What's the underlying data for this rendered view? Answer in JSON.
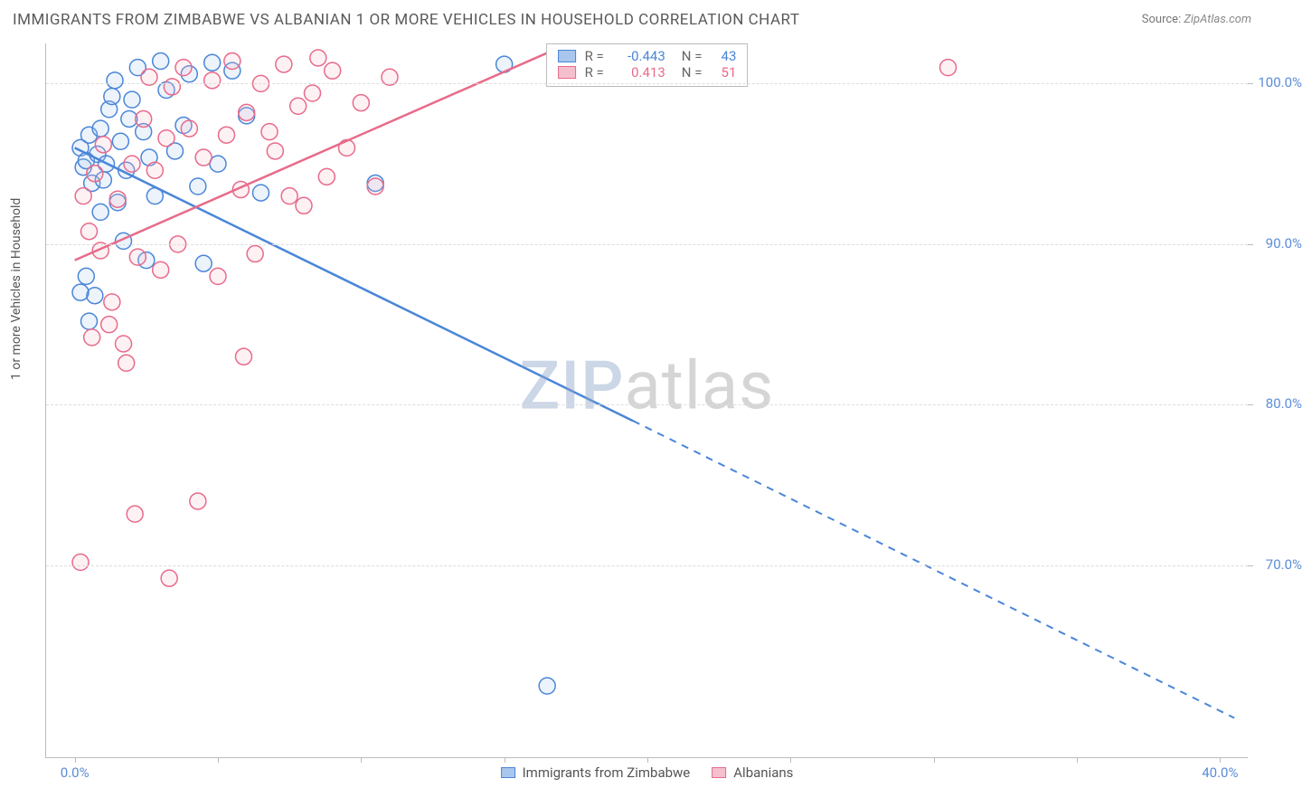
{
  "title": "IMMIGRANTS FROM ZIMBABWE VS ALBANIAN 1 OR MORE VEHICLES IN HOUSEHOLD CORRELATION CHART",
  "source_label": "Source:",
  "source_value": "ZipAtlas.com",
  "ylabel": "1 or more Vehicles in Household",
  "watermark_a": "ZIP",
  "watermark_b": "atlas",
  "chart": {
    "type": "scatter",
    "xlim": [
      -1,
      41
    ],
    "ylim": [
      58,
      102.5
    ],
    "xtick_positions": [
      0,
      5,
      10,
      15,
      20,
      25,
      30,
      35,
      40
    ],
    "xtick_labels": [
      "0.0%",
      "",
      "",
      "",
      "",
      "",
      "",
      "",
      "40.0%"
    ],
    "ytick_positions": [
      70,
      80,
      90,
      100
    ],
    "ytick_labels": [
      "70.0%",
      "80.0%",
      "90.0%",
      "100.0%"
    ],
    "grid_color": "#dddddd",
    "axis_color": "#bbbbbb",
    "background_color": "#ffffff",
    "tick_label_color": "#5b8dd6",
    "marker_radius": 9,
    "marker_stroke_width": 1.5,
    "marker_fill_opacity": 0.22,
    "series": [
      {
        "name": "Immigrants from Zimbabwe",
        "color": "#4a86d8",
        "fill": "#a9c7ed",
        "r_value": "-0.443",
        "n_value": "43",
        "points": [
          [
            0.2,
            96.0
          ],
          [
            0.3,
            94.8
          ],
          [
            0.5,
            96.8
          ],
          [
            0.4,
            95.2
          ],
          [
            0.6,
            93.8
          ],
          [
            0.8,
            95.6
          ],
          [
            0.9,
            97.2
          ],
          [
            1.0,
            94.0
          ],
          [
            1.2,
            98.4
          ],
          [
            1.3,
            99.2
          ],
          [
            1.4,
            100.2
          ],
          [
            1.6,
            96.4
          ],
          [
            1.8,
            94.6
          ],
          [
            1.9,
            97.8
          ],
          [
            2.0,
            99.0
          ],
          [
            2.2,
            101.0
          ],
          [
            2.4,
            97.0
          ],
          [
            2.6,
            95.4
          ],
          [
            2.8,
            93.0
          ],
          [
            3.0,
            101.4
          ],
          [
            3.2,
            99.6
          ],
          [
            3.5,
            95.8
          ],
          [
            3.8,
            97.4
          ],
          [
            4.0,
            100.6
          ],
          [
            4.3,
            93.6
          ],
          [
            4.5,
            88.8
          ],
          [
            0.4,
            88.0
          ],
          [
            0.7,
            86.8
          ],
          [
            1.1,
            95.0
          ],
          [
            1.5,
            92.6
          ],
          [
            1.7,
            90.2
          ],
          [
            0.9,
            92.0
          ],
          [
            0.5,
            85.2
          ],
          [
            0.2,
            87.0
          ],
          [
            2.5,
            89.0
          ],
          [
            4.8,
            101.3
          ],
          [
            5.0,
            95.0
          ],
          [
            5.5,
            100.8
          ],
          [
            6.0,
            98.0
          ],
          [
            6.5,
            93.2
          ],
          [
            10.5,
            93.8
          ],
          [
            15.0,
            101.2
          ],
          [
            16.5,
            62.5
          ]
        ],
        "regression_solid": {
          "x1": 0,
          "y1": 96.0,
          "x2": 19.5,
          "y2": 79.0
        },
        "regression_dashed": {
          "x1": 19.5,
          "y1": 79.0,
          "x2": 40.5,
          "y2": 60.5
        }
      },
      {
        "name": "Albanians",
        "color": "#e86b8a",
        "fill": "#f5c0cd",
        "r_value": "0.413",
        "n_value": "51",
        "points": [
          [
            0.3,
            93.0
          ],
          [
            0.5,
            90.8
          ],
          [
            0.7,
            94.4
          ],
          [
            0.9,
            89.6
          ],
          [
            1.0,
            96.2
          ],
          [
            1.2,
            85.0
          ],
          [
            1.3,
            86.4
          ],
          [
            1.5,
            92.8
          ],
          [
            1.7,
            83.8
          ],
          [
            1.8,
            82.6
          ],
          [
            2.0,
            95.0
          ],
          [
            2.2,
            89.2
          ],
          [
            2.4,
            97.8
          ],
          [
            2.6,
            100.4
          ],
          [
            2.8,
            94.6
          ],
          [
            3.0,
            88.4
          ],
          [
            3.2,
            96.6
          ],
          [
            3.4,
            99.8
          ],
          [
            3.6,
            90.0
          ],
          [
            3.8,
            101.0
          ],
          [
            4.0,
            97.2
          ],
          [
            4.3,
            74.0
          ],
          [
            4.5,
            95.4
          ],
          [
            4.8,
            100.2
          ],
          [
            5.0,
            88.0
          ],
          [
            5.3,
            96.8
          ],
          [
            5.5,
            101.4
          ],
          [
            5.8,
            93.4
          ],
          [
            6.0,
            98.2
          ],
          [
            6.3,
            89.4
          ],
          [
            6.5,
            100.0
          ],
          [
            6.8,
            97.0
          ],
          [
            7.0,
            95.8
          ],
          [
            7.3,
            101.2
          ],
          [
            7.5,
            93.0
          ],
          [
            7.8,
            98.6
          ],
          [
            8.0,
            92.4
          ],
          [
            8.3,
            99.4
          ],
          [
            8.5,
            101.6
          ],
          [
            8.8,
            94.2
          ],
          [
            9.0,
            100.8
          ],
          [
            0.2,
            70.2
          ],
          [
            2.1,
            73.2
          ],
          [
            3.3,
            69.2
          ],
          [
            5.9,
            83.0
          ],
          [
            0.6,
            84.2
          ],
          [
            9.5,
            96.0
          ],
          [
            10.0,
            98.8
          ],
          [
            10.5,
            93.6
          ],
          [
            11.0,
            100.4
          ],
          [
            30.5,
            101.0
          ]
        ],
        "regression_solid": {
          "x1": 0,
          "y1": 89.0,
          "x2": 17.0,
          "y2": 102.3
        },
        "regression_dashed": null
      }
    ]
  },
  "legend_top": {
    "r_label": "R =",
    "n_label": "N ="
  },
  "legend_bottom": [
    {
      "label": "Immigrants from Zimbabwe",
      "fill": "#a9c7ed",
      "border": "#4a86d8"
    },
    {
      "label": "Albanians",
      "fill": "#f5c0cd",
      "border": "#e86b8a"
    }
  ]
}
